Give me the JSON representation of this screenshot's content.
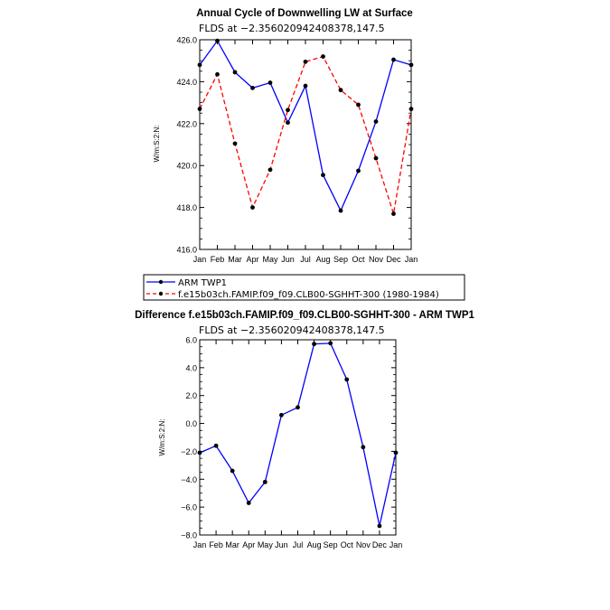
{
  "chart_data": [
    {
      "type": "line",
      "title": "Annual Cycle of Downwelling LW at Surface",
      "subtitle": "FLDS at −2.356020942408378,147.5",
      "ylabel": "W/m:S:2:N:",
      "xlabel": "",
      "categories": [
        "Jan",
        "Feb",
        "Mar",
        "Apr",
        "May",
        "Jun",
        "Jul",
        "Aug",
        "Sep",
        "Oct",
        "Nov",
        "Dec",
        "Jan"
      ],
      "ylim": [
        416.0,
        426.0
      ],
      "yticks": [
        "416.0",
        "418.0",
        "420.0",
        "422.0",
        "424.0",
        "426.0"
      ],
      "grid": false,
      "legend_position": "bottom",
      "series": [
        {
          "name": "ARM TWP1",
          "color": "#0000ff",
          "dash": "solid",
          "values": [
            424.8,
            425.95,
            424.45,
            423.7,
            423.95,
            422.05,
            423.8,
            419.55,
            417.85,
            419.75,
            422.1,
            425.05,
            424.8
          ]
        },
        {
          "name": "f.e15b03ch.FAMIP.f09_f09.CLB00-SGHHT-300 (1980-1984)",
          "color": "#ff0000",
          "dash": "dashed",
          "values": [
            422.7,
            424.35,
            421.05,
            418.0,
            419.8,
            422.65,
            424.95,
            425.2,
            423.6,
            422.9,
            420.35,
            417.7,
            422.7
          ]
        }
      ]
    },
    {
      "type": "line",
      "title": "Difference f.e15b03ch.FAMIP.f09_f09.CLB00-SGHHT-300 - ARM TWP1",
      "subtitle": "FLDS at −2.356020942408378,147.5",
      "ylabel": "W/m:S:2:N:",
      "xlabel": "",
      "categories": [
        "Jan",
        "Feb",
        "Mar",
        "Apr",
        "May",
        "Jun",
        "Jul",
        "Aug",
        "Sep",
        "Oct",
        "Nov",
        "Dec",
        "Jan"
      ],
      "ylim": [
        -8.0,
        6.0
      ],
      "yticks": [
        "−8.0",
        "−6.0",
        "−4.0",
        "−2.0",
        "0.0",
        "2.0",
        "4.0",
        "6.0"
      ],
      "grid": false,
      "series": [
        {
          "color": "#0000ff",
          "dash": "solid",
          "values": [
            -2.1,
            -1.6,
            -3.4,
            -5.7,
            -4.2,
            0.6,
            1.15,
            5.7,
            5.75,
            3.15,
            -1.7,
            -7.35,
            -2.1
          ]
        }
      ]
    }
  ]
}
